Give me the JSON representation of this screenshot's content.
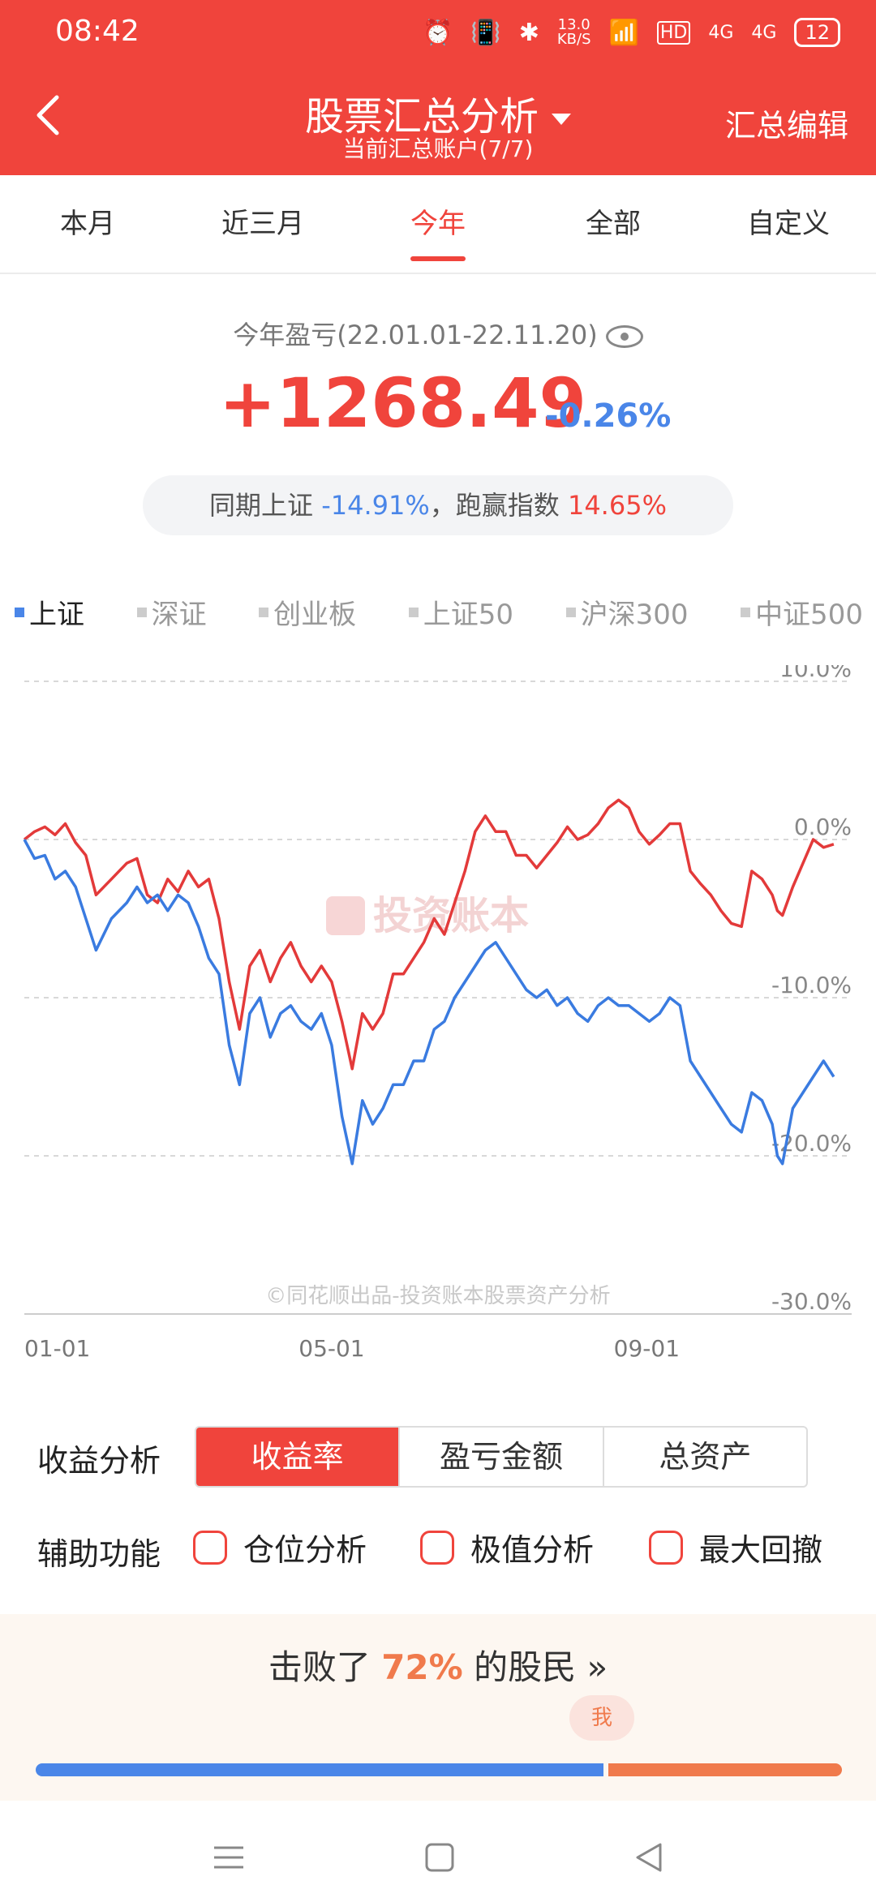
{
  "status": {
    "time": "08:42",
    "speed": "13.0\nKB/S",
    "net1": "HD",
    "net2": "4G",
    "net3": "4G",
    "battery": "12"
  },
  "header": {
    "title": "股票汇总分析",
    "subtitle": "当前汇总账户(7/7)",
    "edit": "汇总编辑"
  },
  "tabs": [
    "本月",
    "近三月",
    "今年",
    "全部",
    "自定义"
  ],
  "summary": {
    "period": "今年盈亏(22.01.01-22.11.20)",
    "pnl": "+1268.49",
    "pct": "-0.26%",
    "compare_prefix": "同期上证",
    "compare_index": "-14.91%",
    "compare_mid": "，跑赢指数",
    "compare_beat": "14.65%"
  },
  "legend": [
    "上证",
    "深证",
    "创业板",
    "上证50",
    "沪深300",
    "中证500"
  ],
  "chart_data": {
    "type": "line",
    "watermark": "投资账本",
    "footer_text": "©同花顺出品-投资账本股票资产分析",
    "x_ticks": [
      "01-01",
      "05-01",
      "09-01"
    ],
    "y_ticks": [
      "10.0%",
      "0.0%",
      "-10.0%",
      "-20.0%",
      "-30.0%"
    ],
    "ylim": [
      -30,
      10
    ],
    "xlim": [
      0,
      323
    ],
    "series": [
      {
        "color": "#e33a3a",
        "points": [
          [
            0,
            0
          ],
          [
            4,
            0.5
          ],
          [
            8,
            0.8
          ],
          [
            12,
            0.3
          ],
          [
            16,
            1
          ],
          [
            20,
            -0.2
          ],
          [
            24,
            -1
          ],
          [
            28,
            -3.5
          ],
          [
            34,
            -2.5
          ],
          [
            40,
            -1.5
          ],
          [
            44,
            -1.2
          ],
          [
            48,
            -3.5
          ],
          [
            52,
            -4
          ],
          [
            56,
            -2.5
          ],
          [
            60,
            -3.3
          ],
          [
            64,
            -2
          ],
          [
            68,
            -3
          ],
          [
            72,
            -2.5
          ],
          [
            76,
            -5
          ],
          [
            80,
            -9
          ],
          [
            84,
            -12
          ],
          [
            88,
            -8
          ],
          [
            92,
            -7
          ],
          [
            96,
            -9
          ],
          [
            100,
            -7.5
          ],
          [
            104,
            -6.5
          ],
          [
            108,
            -8
          ],
          [
            112,
            -9
          ],
          [
            116,
            -8
          ],
          [
            120,
            -9
          ],
          [
            124,
            -11.5
          ],
          [
            128,
            -14.5
          ],
          [
            132,
            -11
          ],
          [
            136,
            -12
          ],
          [
            140,
            -11
          ],
          [
            144,
            -8.5
          ],
          [
            148,
            -8.5
          ],
          [
            152,
            -7.5
          ],
          [
            156,
            -6.5
          ],
          [
            160,
            -5
          ],
          [
            164,
            -6
          ],
          [
            168,
            -4
          ],
          [
            172,
            -2
          ],
          [
            176,
            0.5
          ],
          [
            180,
            1.5
          ],
          [
            184,
            0.5
          ],
          [
            188,
            0.5
          ],
          [
            192,
            -1
          ],
          [
            196,
            -1
          ],
          [
            200,
            -1.8
          ],
          [
            204,
            -1
          ],
          [
            208,
            -0.2
          ],
          [
            212,
            0.8
          ],
          [
            216,
            0
          ],
          [
            220,
            0.3
          ],
          [
            224,
            1
          ],
          [
            228,
            2
          ],
          [
            232,
            2.5
          ],
          [
            236,
            2
          ],
          [
            240,
            0.5
          ],
          [
            244,
            -0.3
          ],
          [
            248,
            0.3
          ],
          [
            252,
            1
          ],
          [
            256,
            1
          ],
          [
            260,
            -2
          ],
          [
            264,
            -2.8
          ],
          [
            268,
            -3.5
          ],
          [
            272,
            -4.5
          ],
          [
            276,
            -5.3
          ],
          [
            280,
            -5.5
          ],
          [
            284,
            -2
          ],
          [
            288,
            -2.5
          ],
          [
            292,
            -3.5
          ],
          [
            294,
            -4.5
          ],
          [
            296,
            -4.8
          ],
          [
            300,
            -3
          ],
          [
            304,
            -1.5
          ],
          [
            308,
            0
          ],
          [
            312,
            -0.5
          ],
          [
            316,
            -0.3
          ]
        ]
      },
      {
        "color": "#3a7be0",
        "points": [
          [
            0,
            0
          ],
          [
            4,
            -1.2
          ],
          [
            8,
            -1
          ],
          [
            12,
            -2.5
          ],
          [
            16,
            -2
          ],
          [
            20,
            -3
          ],
          [
            24,
            -5
          ],
          [
            28,
            -7
          ],
          [
            34,
            -5
          ],
          [
            40,
            -4
          ],
          [
            44,
            -3
          ],
          [
            48,
            -4
          ],
          [
            52,
            -3.5
          ],
          [
            56,
            -4.5
          ],
          [
            60,
            -3.5
          ],
          [
            64,
            -4
          ],
          [
            68,
            -5.5
          ],
          [
            72,
            -7.5
          ],
          [
            76,
            -8.5
          ],
          [
            80,
            -13
          ],
          [
            84,
            -15.5
          ],
          [
            88,
            -11
          ],
          [
            92,
            -10
          ],
          [
            96,
            -12.5
          ],
          [
            100,
            -11
          ],
          [
            104,
            -10.5
          ],
          [
            108,
            -11.5
          ],
          [
            112,
            -12
          ],
          [
            116,
            -11
          ],
          [
            120,
            -13
          ],
          [
            124,
            -17.5
          ],
          [
            128,
            -20.5
          ],
          [
            132,
            -16.5
          ],
          [
            136,
            -18
          ],
          [
            140,
            -17
          ],
          [
            144,
            -15.5
          ],
          [
            148,
            -15.5
          ],
          [
            152,
            -14
          ],
          [
            156,
            -14
          ],
          [
            160,
            -12
          ],
          [
            164,
            -11.5
          ],
          [
            168,
            -10
          ],
          [
            172,
            -9
          ],
          [
            176,
            -8
          ],
          [
            180,
            -7
          ],
          [
            184,
            -6.5
          ],
          [
            188,
            -7.5
          ],
          [
            192,
            -8.5
          ],
          [
            196,
            -9.5
          ],
          [
            200,
            -10
          ],
          [
            204,
            -9.5
          ],
          [
            208,
            -10.5
          ],
          [
            212,
            -10
          ],
          [
            216,
            -11
          ],
          [
            220,
            -11.5
          ],
          [
            224,
            -10.5
          ],
          [
            228,
            -10
          ],
          [
            232,
            -10.5
          ],
          [
            236,
            -10.5
          ],
          [
            240,
            -11
          ],
          [
            244,
            -11.5
          ],
          [
            248,
            -11
          ],
          [
            252,
            -10
          ],
          [
            256,
            -10.5
          ],
          [
            260,
            -14
          ],
          [
            264,
            -15
          ],
          [
            268,
            -16
          ],
          [
            272,
            -17
          ],
          [
            276,
            -18
          ],
          [
            280,
            -18.5
          ],
          [
            284,
            -16
          ],
          [
            288,
            -16.5
          ],
          [
            292,
            -18
          ],
          [
            294,
            -20
          ],
          [
            296,
            -20.5
          ],
          [
            300,
            -17
          ],
          [
            304,
            -16
          ],
          [
            308,
            -15
          ],
          [
            312,
            -14
          ],
          [
            316,
            -15
          ]
        ]
      }
    ]
  },
  "analysis": {
    "label": "收益分析",
    "options": [
      "收益率",
      "盈亏金额",
      "总资产"
    ]
  },
  "aux": {
    "label": "辅助功能",
    "options": [
      "仓位分析",
      "极值分析",
      "最大回撤"
    ]
  },
  "beat": {
    "prefix": "击败了",
    "pct": "72%",
    "suffix": "的股民 »",
    "me": "我"
  },
  "colors": {
    "brand": "#f0443c",
    "blue": "#4a86e8",
    "orange": "#f07a4c"
  }
}
